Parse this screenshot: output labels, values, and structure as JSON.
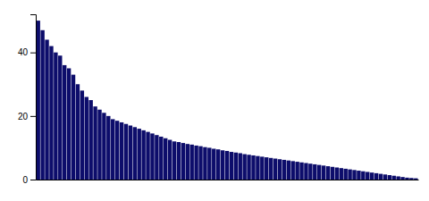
{
  "chart_data": {
    "type": "bar",
    "categories": [
      null,
      null,
      null,
      null,
      null,
      null,
      null,
      null,
      null,
      null,
      null,
      null,
      null,
      null,
      null,
      null,
      null,
      null,
      null,
      null,
      null,
      null,
      null,
      null,
      null,
      null,
      null,
      null,
      null,
      null,
      null,
      null,
      null,
      null,
      null,
      null,
      null,
      null,
      null,
      null,
      null,
      null,
      null,
      null,
      null,
      null,
      null,
      null,
      null,
      null,
      null,
      null,
      null,
      null,
      null,
      null,
      null,
      null,
      null,
      null,
      null,
      null,
      null,
      null,
      null,
      null,
      null,
      null,
      null,
      null,
      null,
      null,
      null,
      null,
      null,
      null,
      null,
      null,
      null,
      null,
      null,
      null,
      null,
      null,
      null,
      null,
      null
    ],
    "values": [
      50,
      47,
      44,
      42,
      40,
      39,
      36,
      35,
      33,
      30,
      28,
      26,
      25,
      23,
      22,
      21,
      20,
      19,
      18.5,
      18,
      17.5,
      17,
      16.5,
      16,
      15.5,
      15,
      14.5,
      14,
      13.5,
      13,
      12.5,
      12,
      11.8,
      11.5,
      11.2,
      11,
      10.7,
      10.5,
      10.2,
      10,
      9.7,
      9.5,
      9.2,
      9,
      8.7,
      8.5,
      8.3,
      8,
      7.8,
      7.6,
      7.4,
      7.2,
      7.0,
      6.8,
      6.6,
      6.4,
      6.2,
      6.0,
      5.8,
      5.6,
      5.4,
      5.2,
      5.0,
      4.8,
      4.6,
      4.4,
      4.2,
      4.0,
      3.8,
      3.6,
      3.4,
      3.2,
      3.0,
      2.8,
      2.6,
      2.4,
      2.2,
      2.0,
      1.8,
      1.6,
      1.4,
      1.2,
      1.0,
      0.8,
      0.6,
      0.5,
      0.4
    ],
    "color": "#0d0d6b",
    "ylim": [
      0,
      52
    ],
    "yticks": [
      0,
      20,
      40
    ],
    "grid": false,
    "tick_labels": "y"
  }
}
